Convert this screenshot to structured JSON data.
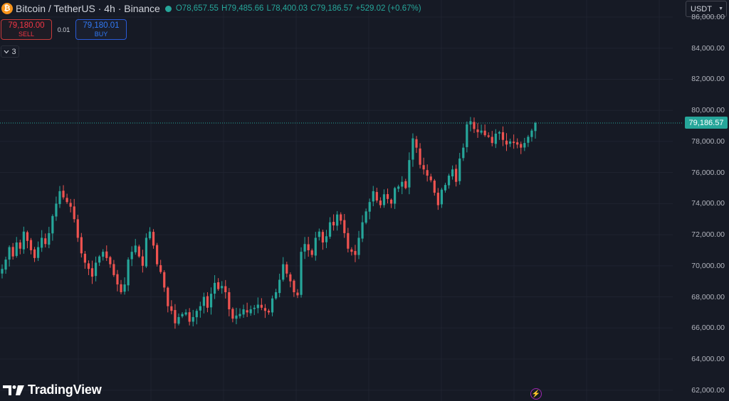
{
  "header": {
    "coin_icon": "bitcoin-icon",
    "coin_glyph": "₿",
    "symbol": "Bitcoin / TetherUS · 4h · Binance",
    "ohlc": {
      "open_label": "O",
      "open": "78,657.55",
      "high_label": "H",
      "high": "79,485.66",
      "low_label": "L",
      "low": "78,400.03",
      "close_label": "C",
      "close": "79,186.57",
      "change": "+529.02 (+0.67%)"
    }
  },
  "trade": {
    "sell_price": "79,180.00",
    "sell_label": "SELL",
    "spread": "0.01",
    "buy_price": "79,180.01",
    "buy_label": "BUY"
  },
  "indicators": {
    "count": "3"
  },
  "currency": {
    "label": "USDT"
  },
  "price_axis": {
    "ticks": [
      "86,000.00",
      "84,000.00",
      "82,000.00",
      "80,000.00",
      "78,000.00",
      "76,000.00",
      "74,000.00",
      "72,000.00",
      "70,000.00",
      "68,000.00",
      "66,000.00",
      "64,000.00",
      "62,000.00"
    ],
    "tick_values": [
      86000,
      84000,
      82000,
      80000,
      78000,
      76000,
      74000,
      72000,
      70000,
      68000,
      66000,
      64000,
      62000
    ],
    "last_price": "79,186.57",
    "last_price_value": 79186.57
  },
  "colors": {
    "up": "#26a69a",
    "down": "#ef5350",
    "background": "#161a25",
    "grid": "#1f2330"
  },
  "branding": {
    "logo_text": "TradingView"
  },
  "chart_data": {
    "type": "candlestick",
    "ylim": [
      61300,
      87100
    ],
    "closes": [
      69800,
      70400,
      71200,
      70600,
      71500,
      71100,
      72200,
      71600,
      71000,
      70500,
      71200,
      71800,
      71400,
      72100,
      73200,
      74000,
      74800,
      74400,
      74100,
      73800,
      73000,
      71800,
      70800,
      70200,
      69800,
      69300,
      70200,
      70600,
      70900,
      70500,
      70100,
      69400,
      68800,
      68300,
      68800,
      70400,
      70900,
      71300,
      70600,
      70000,
      71800,
      72200,
      71300,
      70100,
      69600,
      68600,
      67400,
      67100,
      66300,
      66700,
      66900,
      67000,
      66400,
      66700,
      67100,
      67400,
      68000,
      67300,
      68200,
      68900,
      68500,
      68700,
      68300,
      67200,
      66600,
      66800,
      66900,
      67200,
      67000,
      67200,
      67300,
      67500,
      67300,
      67100,
      67000,
      67900,
      68300,
      69100,
      70100,
      69500,
      69000,
      68300,
      68100,
      70900,
      71400,
      71000,
      70700,
      71800,
      72200,
      71500,
      71900,
      72800,
      72600,
      73300,
      72900,
      72100,
      71100,
      70900,
      70700,
      71800,
      72800,
      73500,
      74100,
      74800,
      74200,
      73900,
      74600,
      74300,
      74000,
      75000,
      75100,
      75400,
      75000,
      76800,
      78200,
      77600,
      76500,
      76200,
      75800,
      75500,
      74700,
      73900,
      74900,
      75200,
      75800,
      76200,
      75400,
      76900,
      77600,
      79100,
      79300,
      78800,
      78600,
      78700,
      78400,
      78300,
      77900,
      78500,
      78600,
      78100,
      77800,
      78000,
      77900,
      77800,
      77600,
      77900,
      78300,
      78700,
      79186
    ]
  }
}
